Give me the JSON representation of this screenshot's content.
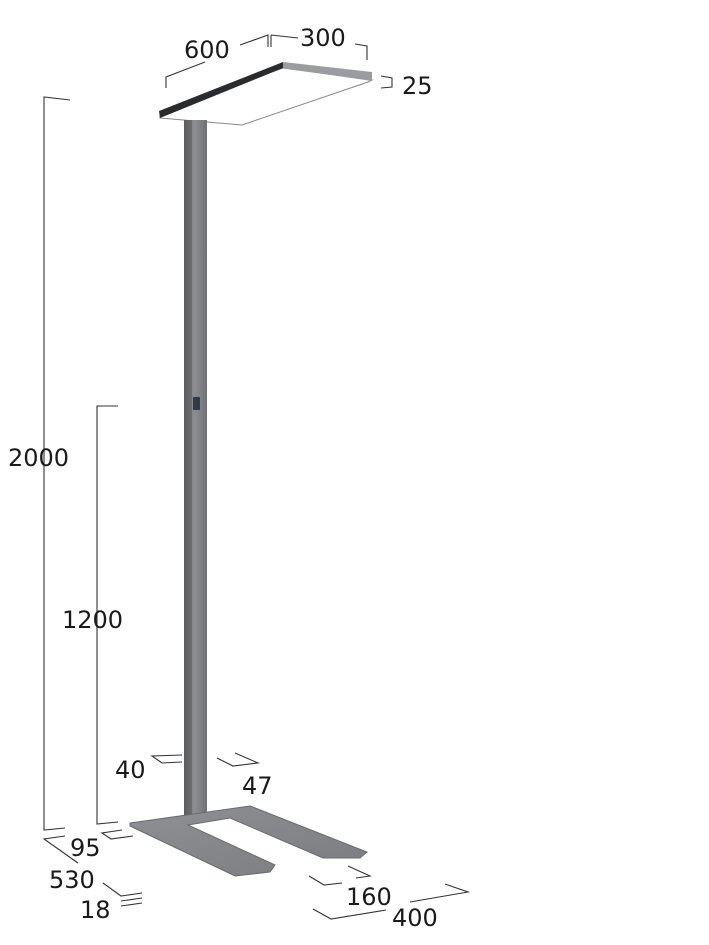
{
  "dimensions": {
    "head_length": "600",
    "head_width": "300",
    "head_height": "25",
    "total_height": "2000",
    "switch_height": "1200",
    "pole_width": "40",
    "pole_depth": "47",
    "base_offset": "95",
    "base_depth": "530",
    "base_thickness": "18",
    "arm_width": "160",
    "base_width": "400"
  },
  "colors": {
    "metal": "#8a8c8f",
    "dark_edge": "#2a2b2d",
    "line": "#333333"
  }
}
